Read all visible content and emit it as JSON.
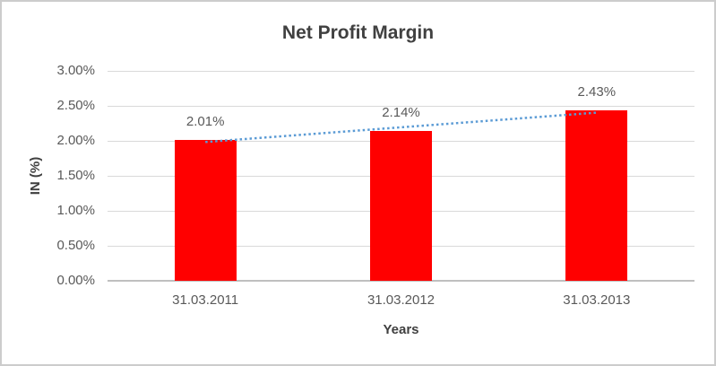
{
  "chart_data": {
    "type": "bar",
    "title": "Net Profit Margin",
    "categories": [
      "31.03.2011",
      "31.03.2012",
      "31.03.2013"
    ],
    "values": [
      2.01,
      2.14,
      2.43
    ],
    "value_labels": [
      "2.01%",
      "2.14%",
      "2.43%"
    ],
    "xlabel": "Years",
    "ylabel": "IN (%)",
    "ylim": [
      0,
      3
    ],
    "ytick_step": 0.5,
    "ytick_labels": [
      "0.00%",
      "0.50%",
      "1.00%",
      "1.50%",
      "2.00%",
      "2.50%",
      "3.00%"
    ],
    "grid": true,
    "legend": "none",
    "bar_color": "#ff0000",
    "trendline": {
      "type": "linear",
      "style": "dotted",
      "color": "#5b9bd5"
    }
  }
}
